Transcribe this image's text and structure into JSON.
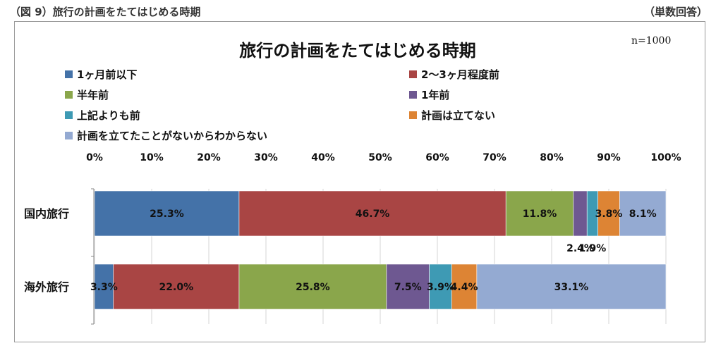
{
  "header": {
    "figure_label": "（図 9）旅行の計画をたてはじめる時期",
    "unit_label": "（単数回答）"
  },
  "chart_data": {
    "type": "bar",
    "orientation": "horizontal",
    "stacked": true,
    "percent": true,
    "title": "旅行の計画をたてはじめる時期",
    "annotation": "n=1000",
    "categories": [
      "国内旅行",
      "海外旅行"
    ],
    "xlim": [
      0,
      100
    ],
    "x_ticks": [
      "0%",
      "10%",
      "20%",
      "30%",
      "40%",
      "50%",
      "60%",
      "70%",
      "80%",
      "90%",
      "100%"
    ],
    "legend_position": "top",
    "grid": true,
    "series": [
      {
        "name": "1ヶ月前以下",
        "color": "#4472a8",
        "values": [
          25.3,
          3.3
        ],
        "labels": [
          "25.3%",
          "3.3%"
        ]
      },
      {
        "name": "2～3ヶ月程度前",
        "color": "#a94544",
        "values": [
          46.7,
          22.0
        ],
        "labels": [
          "46.7%",
          "22.0%"
        ]
      },
      {
        "name": "半年前",
        "color": "#8aa64b",
        "values": [
          11.8,
          25.8
        ],
        "labels": [
          "11.8%",
          "25.8%"
        ]
      },
      {
        "name": "1年前",
        "color": "#6e5891",
        "values": [
          2.4,
          7.5
        ],
        "labels": [
          "2.4%",
          "7.5%"
        ]
      },
      {
        "name": "上記よりも前",
        "color": "#3e9ab4",
        "values": [
          1.9,
          3.9
        ],
        "labels": [
          "1.9%",
          "3.9%"
        ]
      },
      {
        "name": "計画は立てない",
        "color": "#dd8434",
        "values": [
          3.8,
          4.4
        ],
        "labels": [
          "3.8%",
          "4.4%"
        ]
      },
      {
        "name": "計画を立てたことがないからわからない",
        "color": "#94aad2",
        "values": [
          8.1,
          33.1
        ],
        "labels": [
          "8.1%",
          "33.1%"
        ]
      }
    ]
  }
}
